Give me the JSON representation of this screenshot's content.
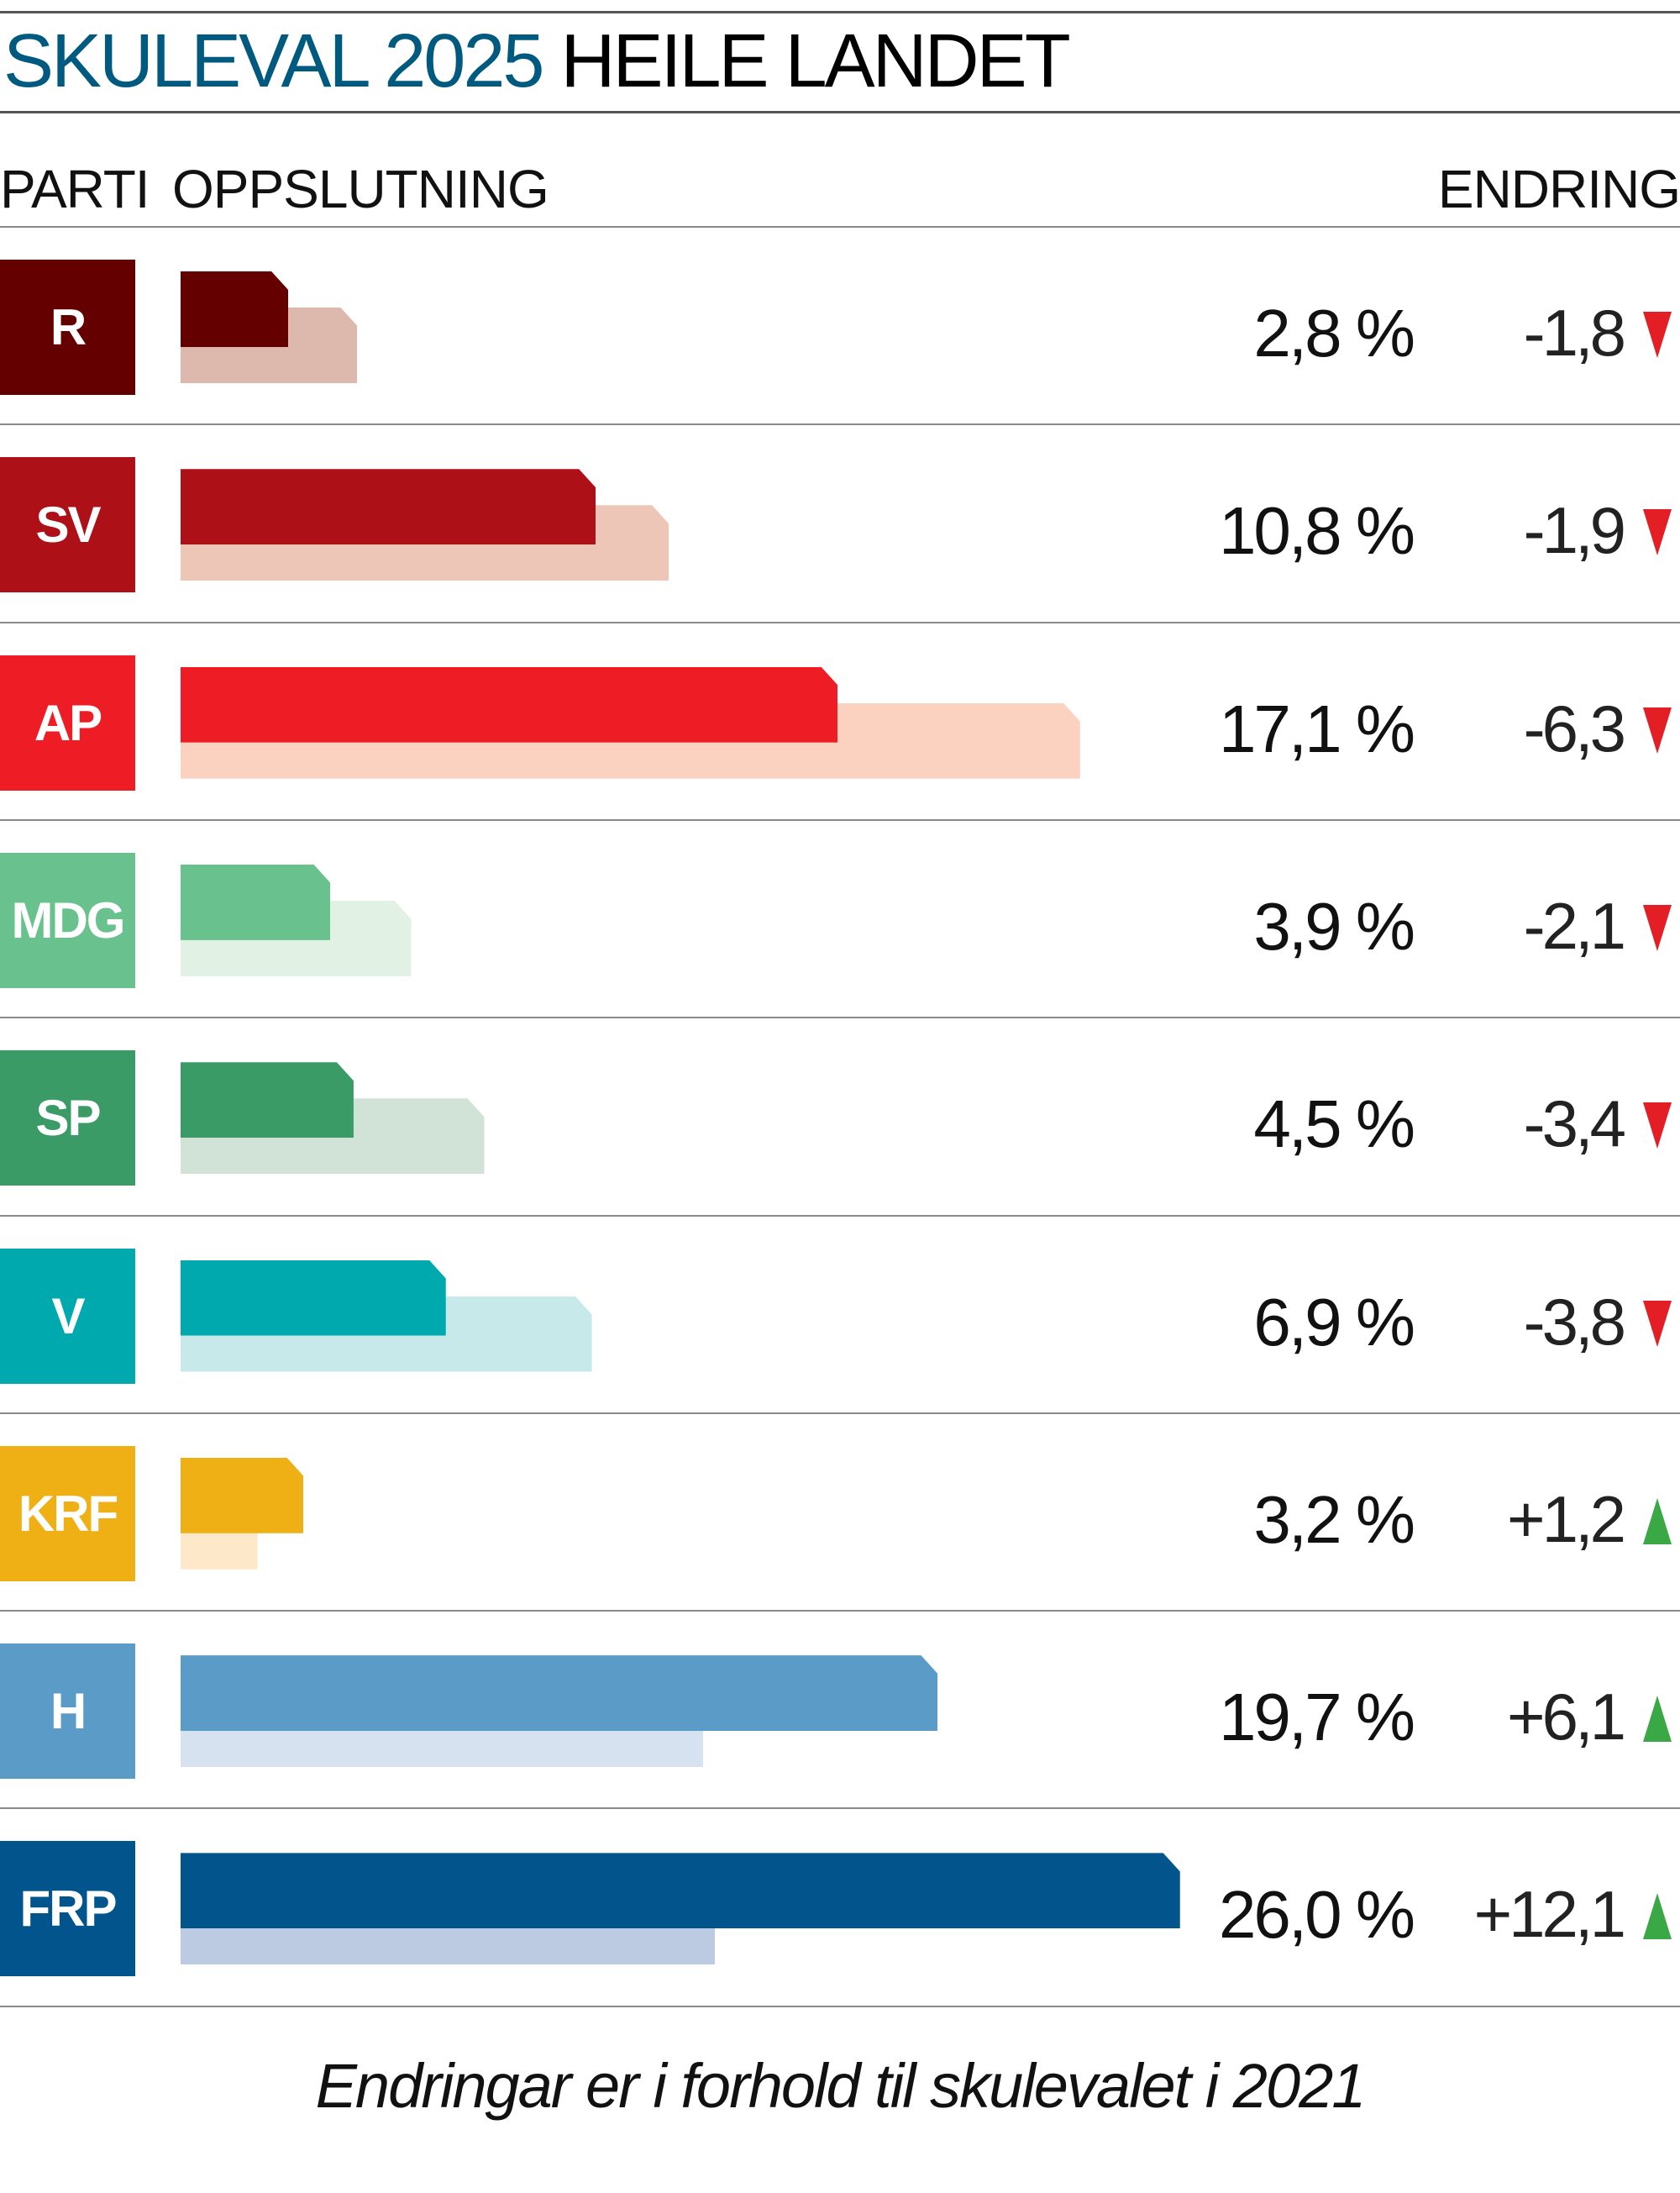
{
  "title": {
    "part1": "SKULEVAL 2025",
    "part2": "HEILE LANDET",
    "accent_color": "#005a80"
  },
  "headers": {
    "party": "PARTI",
    "support": "OPPSLUTNING",
    "change": "ENDRING"
  },
  "footer": "Endringar er i forhold til skulevalet i 2021",
  "chart_data": {
    "type": "bar",
    "categories": [
      "R",
      "SV",
      "AP",
      "MDG",
      "SP",
      "V",
      "KRF",
      "H",
      "FRP"
    ],
    "series": [
      {
        "name": "2025",
        "values": [
          2.8,
          10.8,
          17.1,
          3.9,
          4.5,
          6.9,
          3.2,
          19.7,
          26.0
        ]
      },
      {
        "name": "2021",
        "values": [
          4.6,
          12.7,
          23.4,
          6.0,
          7.9,
          10.7,
          2.0,
          13.6,
          13.9
        ]
      }
    ],
    "value_labels": [
      "2,8 %",
      "10,8 %",
      "17,1 %",
      "3,9 %",
      "4,5 %",
      "6,9 %",
      "3,2 %",
      "19,7 %",
      "26,0 %"
    ],
    "change_labels": [
      "-1,8",
      "-1,9",
      "-6,3",
      "-2,1",
      "-3,4",
      "-3,8",
      "+1,2",
      "+6,1",
      "+12,1"
    ],
    "change_direction": [
      "down",
      "down",
      "down",
      "down",
      "down",
      "down",
      "up",
      "up",
      "up"
    ],
    "colors": [
      "#650000",
      "#ad1016",
      "#ee1c25",
      "#69c18d",
      "#3a9b67",
      "#00a9ad",
      "#efb015",
      "#5a9bc8",
      "#02548c"
    ],
    "colors_previous": [
      "#dcb9ac",
      "#eec6b7",
      "#fbd1c0",
      "#e1f1e4",
      "#d1e3d7",
      "#c8e9ea",
      "#fde9c9",
      "#d6e2ef",
      "#bccbe1"
    ],
    "up_color": "#3aa845",
    "down_color": "#e31e24",
    "orientation": "horizontal",
    "grid": false
  }
}
